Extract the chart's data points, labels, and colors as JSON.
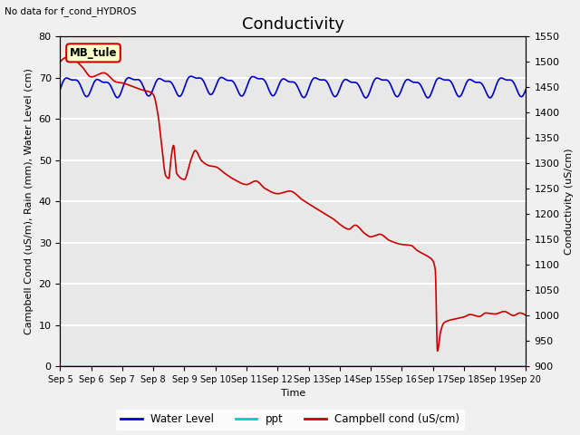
{
  "title": "Conductivity",
  "top_left_text": "No data for f_cond_HYDROS",
  "xlabel": "Time",
  "ylabel_left": "Campbell Cond (uS/m), Rain (mm), Water Level (cm)",
  "ylabel_right": "Conductivity (uS/cm)",
  "ylim_left": [
    0,
    80
  ],
  "ylim_right": [
    900,
    1550
  ],
  "annotation_label": "MB_tule",
  "annotation_bg": "#FFFFCC",
  "annotation_border": "#CC0000",
  "plot_bg": "#E8E8E8",
  "fig_bg": "#F0F0F0",
  "grid_color": "#FFFFFF",
  "line_blue_color": "#0000CC",
  "line_red_color": "#CC0000",
  "line_cyan_color": "#00CCCC",
  "xtick_labels": [
    "Sep 5",
    "Sep 6",
    "Sep 7",
    "Sep 8",
    "Sep 9",
    "Sep 10",
    "Sep 11",
    "Sep 12",
    "Sep 13",
    "Sep 14",
    "Sep 15",
    "Sep 16",
    "Sep 17",
    "Sep 18",
    "Sep 19",
    "Sep 20"
  ],
  "xtick_positions": [
    0,
    1,
    2,
    3,
    4,
    5,
    6,
    7,
    8,
    9,
    10,
    11,
    12,
    13,
    14,
    15
  ],
  "xlim": [
    0,
    15
  ],
  "legend_labels": [
    "Water Level",
    "ppt",
    "Campbell cond (uS/cm)"
  ],
  "legend_colors": [
    "#0000CC",
    "#00CCCC",
    "#CC0000"
  ],
  "yticks_right": [
    900,
    950,
    1000,
    1050,
    1100,
    1150,
    1200,
    1250,
    1300,
    1350,
    1400,
    1450,
    1500,
    1550
  ],
  "yticks_left": [
    0,
    10,
    20,
    30,
    40,
    50,
    60,
    70,
    80
  ],
  "title_fontsize": 13,
  "label_fontsize": 8,
  "tick_fontsize": 8
}
